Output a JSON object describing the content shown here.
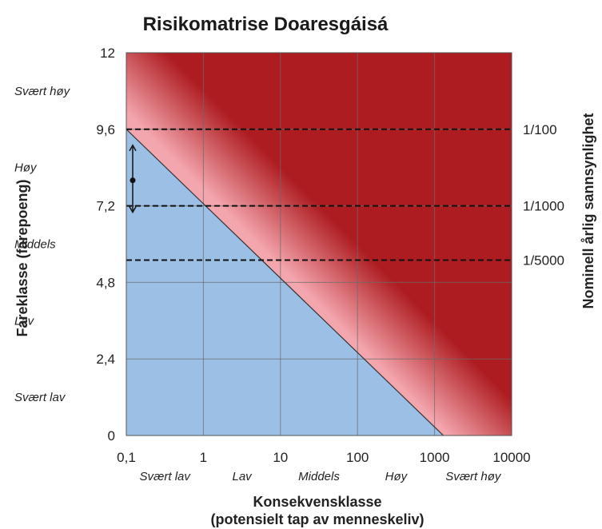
{
  "chart_data": {
    "type": "heatmap",
    "title": "Risikomatrise Doaresgáisá",
    "xlabel": "Konsekvensklasse",
    "xlabel_line2": "(potensielt tap av menneskeliv)",
    "ylabel": "Fareklasse (farepoeng)",
    "ylabel_right": "Nominell årlig sannsynlighet",
    "x_scale": "log",
    "xlim": [
      0.1,
      10000
    ],
    "ylim": [
      0,
      12
    ],
    "x_ticks": [
      "0,1",
      "1",
      "10",
      "100",
      "1000",
      "10000"
    ],
    "x_tick_values": [
      0.1,
      1,
      10,
      100,
      1000,
      10000
    ],
    "y_ticks": [
      "0",
      "2,4",
      "4,8",
      "7,2",
      "9,6",
      "12"
    ],
    "y_tick_values": [
      0,
      2.4,
      4.8,
      7.2,
      9.6,
      12
    ],
    "x_classes": [
      "Svært lav",
      "Lav",
      "Middels",
      "Høy",
      "Svært høy"
    ],
    "y_classes": [
      "Svært lav",
      "Lav",
      "Middels",
      "Høy",
      "Svært høy"
    ],
    "probability_lines": [
      {
        "label": "1/100",
        "y": 9.6
      },
      {
        "label": "1/1000",
        "y": 7.2
      },
      {
        "label": "1/5000",
        "y": 5.5
      }
    ],
    "boundary_line": {
      "from": [
        0.1,
        9.6
      ],
      "to": [
        1300,
        0
      ]
    },
    "marker": {
      "x": 0.1,
      "y": 8.0,
      "y_low": 7.0,
      "y_high": 9.1
    },
    "grid": true,
    "colors": {
      "low_risk": "#9bbfe5",
      "medium_risk": "#f4a6ae",
      "high_risk": "#ad1c20",
      "grid": "#6b6b6b",
      "dashed": "#111111"
    }
  }
}
